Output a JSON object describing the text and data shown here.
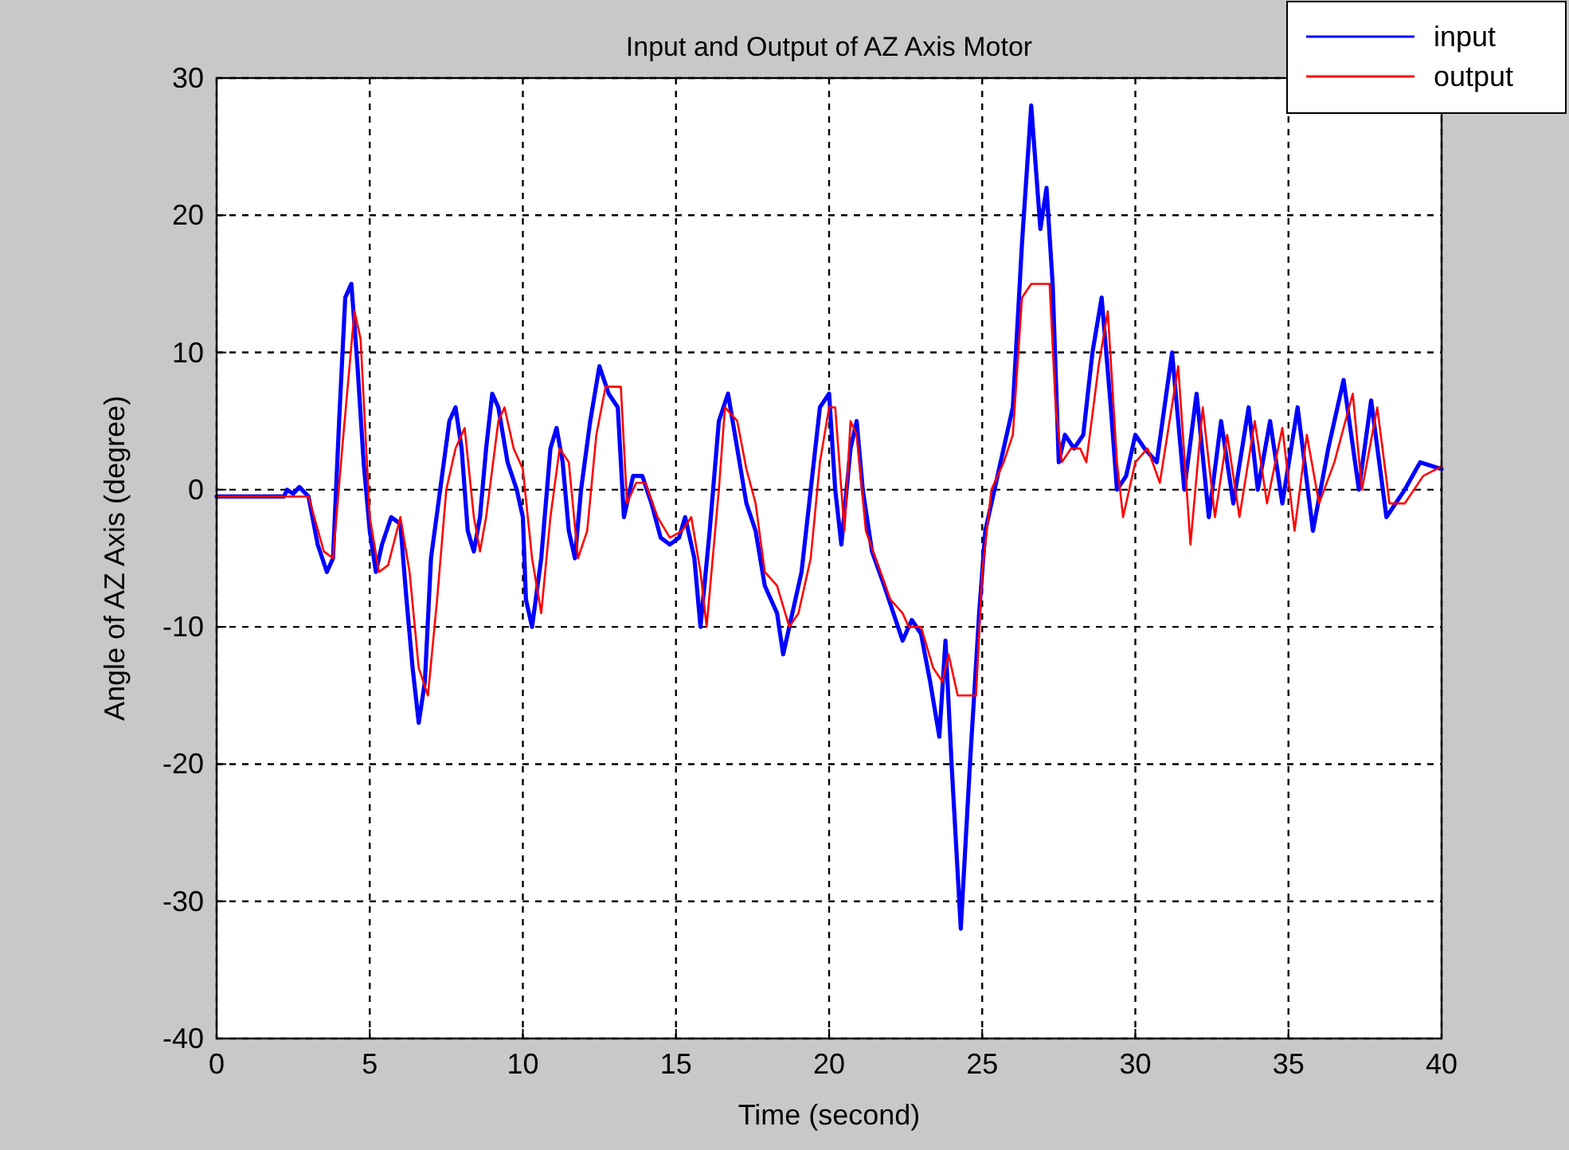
{
  "chart_data": {
    "type": "line",
    "title": "Input and Output of AZ Axis Motor",
    "xlabel": "Time (second)",
    "ylabel": "Angle of AZ Axis (degree)",
    "xlim": [
      0,
      40
    ],
    "xticks": [
      0,
      5,
      10,
      15,
      20,
      25,
      30,
      35,
      40
    ],
    "ylim": [
      -40,
      30
    ],
    "yticks": [
      -40,
      -30,
      -20,
      -10,
      0,
      10,
      20,
      30
    ],
    "grid": true,
    "legend": "top right",
    "line_style": "solid",
    "series": [
      {
        "name": "input",
        "color": "#0000ff",
        "x": [
          0,
          2.2,
          2.3,
          2.5,
          2.7,
          3.0,
          3.3,
          3.6,
          3.8,
          4.0,
          4.2,
          4.4,
          4.6,
          4.8,
          5.0,
          5.2,
          5.4,
          5.7,
          6.0,
          6.2,
          6.4,
          6.6,
          6.8,
          7.0,
          7.3,
          7.6,
          7.8,
          8.0,
          8.2,
          8.4,
          8.6,
          8.8,
          9.0,
          9.2,
          9.5,
          9.8,
          10.0,
          10.1,
          10.3,
          10.6,
          10.9,
          11.1,
          11.3,
          11.5,
          11.7,
          11.9,
          12.2,
          12.5,
          12.8,
          13.1,
          13.3,
          13.6,
          13.9,
          14.2,
          14.5,
          14.8,
          15.1,
          15.3,
          15.6,
          15.8,
          16.1,
          16.4,
          16.7,
          17.0,
          17.3,
          17.6,
          17.9,
          18.3,
          18.5,
          18.8,
          19.1,
          19.4,
          19.7,
          20.0,
          20.2,
          20.4,
          20.7,
          20.9,
          21.1,
          21.4,
          21.8,
          22.1,
          22.4,
          22.7,
          23.0,
          23.3,
          23.6,
          23.8,
          24.0,
          24.3,
          24.6,
          24.9,
          25.1,
          25.4,
          25.7,
          26.0,
          26.3,
          26.6,
          26.9,
          27.1,
          27.3,
          27.5,
          27.7,
          28.0,
          28.3,
          28.6,
          28.9,
          29.2,
          29.4,
          29.7,
          30.0,
          30.3,
          30.7,
          31.2,
          31.6,
          32.0,
          32.4,
          32.8,
          33.2,
          33.7,
          34.0,
          34.4,
          34.8,
          35.3,
          35.8,
          36.3,
          36.8,
          37.3,
          37.7,
          38.2,
          38.8,
          39.3,
          40
        ],
        "values": [
          -0.5,
          -0.5,
          0,
          -0.3,
          0.2,
          -0.5,
          -4,
          -6,
          -5,
          5,
          14,
          15,
          9,
          2,
          -3,
          -6,
          -4,
          -2,
          -2.5,
          -8,
          -13,
          -17,
          -14,
          -5,
          0,
          5,
          6,
          3,
          -3,
          -4.5,
          -2,
          3,
          7,
          6,
          2,
          0,
          -2,
          -8,
          -10,
          -5,
          3,
          4.5,
          2,
          -3,
          -5,
          0,
          5,
          9,
          7,
          6,
          -2,
          1,
          1,
          -1,
          -3.5,
          -4,
          -3.5,
          -2,
          -5,
          -10,
          -3,
          5,
          7,
          3,
          -1,
          -3,
          -7,
          -9,
          -12,
          -9,
          -6,
          0,
          6,
          7,
          0,
          -4,
          3,
          5,
          0,
          -4.5,
          -7,
          -9,
          -11,
          -9.5,
          -10.5,
          -14,
          -18,
          -11,
          -20,
          -32,
          -20,
          -9,
          -3,
          0,
          3,
          6,
          18,
          28,
          19,
          22,
          15,
          2,
          4,
          3,
          4,
          10,
          14,
          6,
          0,
          1,
          4,
          3,
          2,
          10,
          0,
          7,
          -2,
          5,
          -1,
          6,
          0,
          5,
          -1,
          6,
          -3,
          3,
          8,
          0,
          6.5,
          -2,
          0,
          2,
          1.5
        ]
      },
      {
        "name": "output",
        "color": "#ff0000",
        "x": [
          0,
          3.0,
          3.5,
          3.8,
          4.1,
          4.5,
          4.7,
          5.0,
          5.3,
          5.6,
          6.0,
          6.3,
          6.6,
          6.9,
          7.2,
          7.5,
          7.8,
          8.1,
          8.4,
          8.6,
          8.8,
          9.2,
          9.4,
          9.7,
          10.0,
          10.3,
          10.6,
          10.9,
          11.2,
          11.5,
          11.8,
          12.1,
          12.4,
          12.7,
          13.2,
          13.4,
          13.7,
          14.0,
          14.4,
          14.8,
          15.2,
          15.5,
          15.8,
          16.0,
          16.4,
          16.6,
          17.0,
          17.3,
          17.6,
          17.9,
          18.3,
          18.7,
          19.0,
          19.4,
          19.7,
          20.0,
          20.2,
          20.5,
          20.7,
          20.9,
          21.2,
          21.6,
          22.0,
          22.4,
          22.6,
          23.0,
          23.4,
          23.7,
          23.9,
          24.2,
          24.8,
          25.0,
          25.3,
          25.7,
          26.0,
          26.3,
          26.6,
          27.2,
          27.4,
          27.6,
          27.9,
          28.2,
          28.4,
          28.8,
          29.1,
          29.4,
          29.6,
          30.0,
          30.4,
          30.8,
          31.4,
          31.8,
          32.2,
          32.6,
          33.0,
          33.4,
          33.9,
          34.3,
          34.8,
          35.2,
          35.6,
          36.0,
          36.5,
          37.1,
          37.4,
          37.9,
          38.3,
          38.8,
          39.4,
          40
        ],
        "values": [
          -0.5,
          -0.5,
          -4.5,
          -5,
          3,
          13,
          11,
          -2,
          -6,
          -5.5,
          -2,
          -6,
          -13,
          -15,
          -8,
          0,
          3,
          4.5,
          -2,
          -4.5,
          -2,
          5,
          6,
          3,
          1.5,
          -5,
          -9,
          -2,
          3,
          2,
          -5,
          -3,
          4,
          7.5,
          7.5,
          -1,
          0.5,
          0.5,
          -2,
          -3.5,
          -3,
          -2,
          -6,
          -10,
          0,
          6,
          5,
          1.5,
          -1,
          -6,
          -7,
          -10,
          -9,
          -5,
          2,
          6,
          6,
          -3,
          5,
          4,
          -3,
          -5.5,
          -8,
          -9,
          -10,
          -10,
          -13,
          -14,
          -12,
          -15,
          -15,
          -6,
          0,
          2,
          4,
          14,
          15,
          15,
          6,
          2,
          3,
          3,
          2,
          9,
          13,
          2,
          -2,
          2,
          3,
          0.5,
          9,
          -4,
          6,
          -2,
          4,
          -2,
          5,
          -1,
          4.5,
          -3,
          4,
          -1,
          2,
          7,
          0,
          6,
          -1,
          -1,
          1,
          1.7
        ]
      }
    ]
  }
}
